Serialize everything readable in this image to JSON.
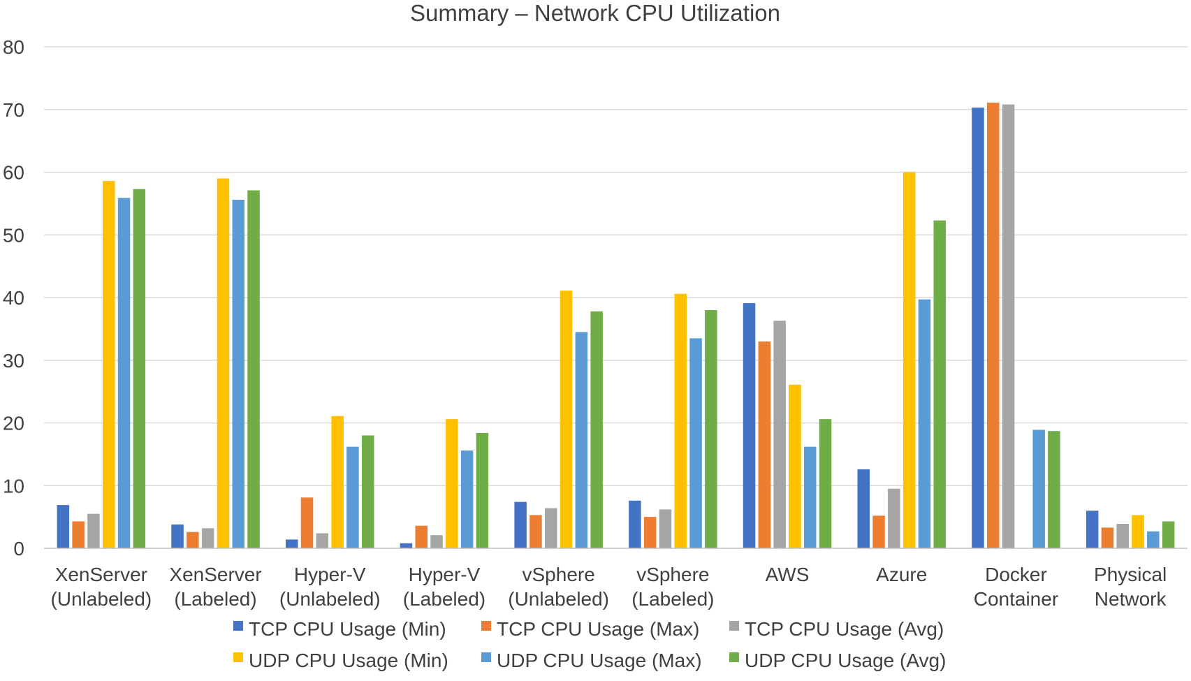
{
  "chart_data": {
    "type": "bar",
    "title": "Summary – Network CPU Utilization",
    "xlabel": "",
    "ylabel": "",
    "ylim": [
      0,
      80
    ],
    "yticks": [
      0,
      10,
      20,
      30,
      40,
      50,
      60,
      70,
      80
    ],
    "grid": true,
    "legend_position": "bottom",
    "categories": [
      [
        "XenServer",
        "(Unlabeled)"
      ],
      [
        "XenServer",
        "(Labeled)"
      ],
      [
        "Hyper-V",
        "(Unlabeled)"
      ],
      [
        "Hyper-V",
        "(Labeled)"
      ],
      [
        "vSphere",
        "(Unlabeled)"
      ],
      [
        "vSphere",
        "(Labeled)"
      ],
      [
        "AWS"
      ],
      [
        "Azure"
      ],
      [
        "Docker",
        "Container"
      ],
      [
        "Physical",
        "Network"
      ]
    ],
    "series": [
      {
        "name": "TCP CPU Usage (Min)",
        "color": "#4472c4",
        "values": [
          6.9,
          3.8,
          1.4,
          0.8,
          7.4,
          7.6,
          39.1,
          12.6,
          70.3,
          6.0
        ]
      },
      {
        "name": "TCP CPU Usage (Max)",
        "color": "#ed7d31",
        "values": [
          4.3,
          2.6,
          8.1,
          3.6,
          5.3,
          5.0,
          33.0,
          5.2,
          71.1,
          3.3
        ]
      },
      {
        "name": "TCP CPU Usage (Avg)",
        "color": "#a5a5a5",
        "values": [
          5.5,
          3.2,
          2.4,
          2.1,
          6.4,
          6.2,
          36.3,
          9.5,
          70.8,
          3.9
        ]
      },
      {
        "name": "UDP CPU Usage (Min)",
        "color": "#ffc000",
        "values": [
          58.6,
          59.0,
          21.1,
          20.6,
          41.1,
          40.6,
          26.1,
          60.0,
          0,
          5.3
        ]
      },
      {
        "name": "UDP CPU Usage (Max)",
        "color": "#5b9bd5",
        "values": [
          55.9,
          55.6,
          16.2,
          15.6,
          34.5,
          33.5,
          16.2,
          39.7,
          18.9,
          2.7
        ]
      },
      {
        "name": "UDP CPU Usage (Avg)",
        "color": "#70ad47",
        "values": [
          57.3,
          57.1,
          18.0,
          18.4,
          37.8,
          38.0,
          20.6,
          52.3,
          18.7,
          4.3
        ]
      }
    ]
  }
}
